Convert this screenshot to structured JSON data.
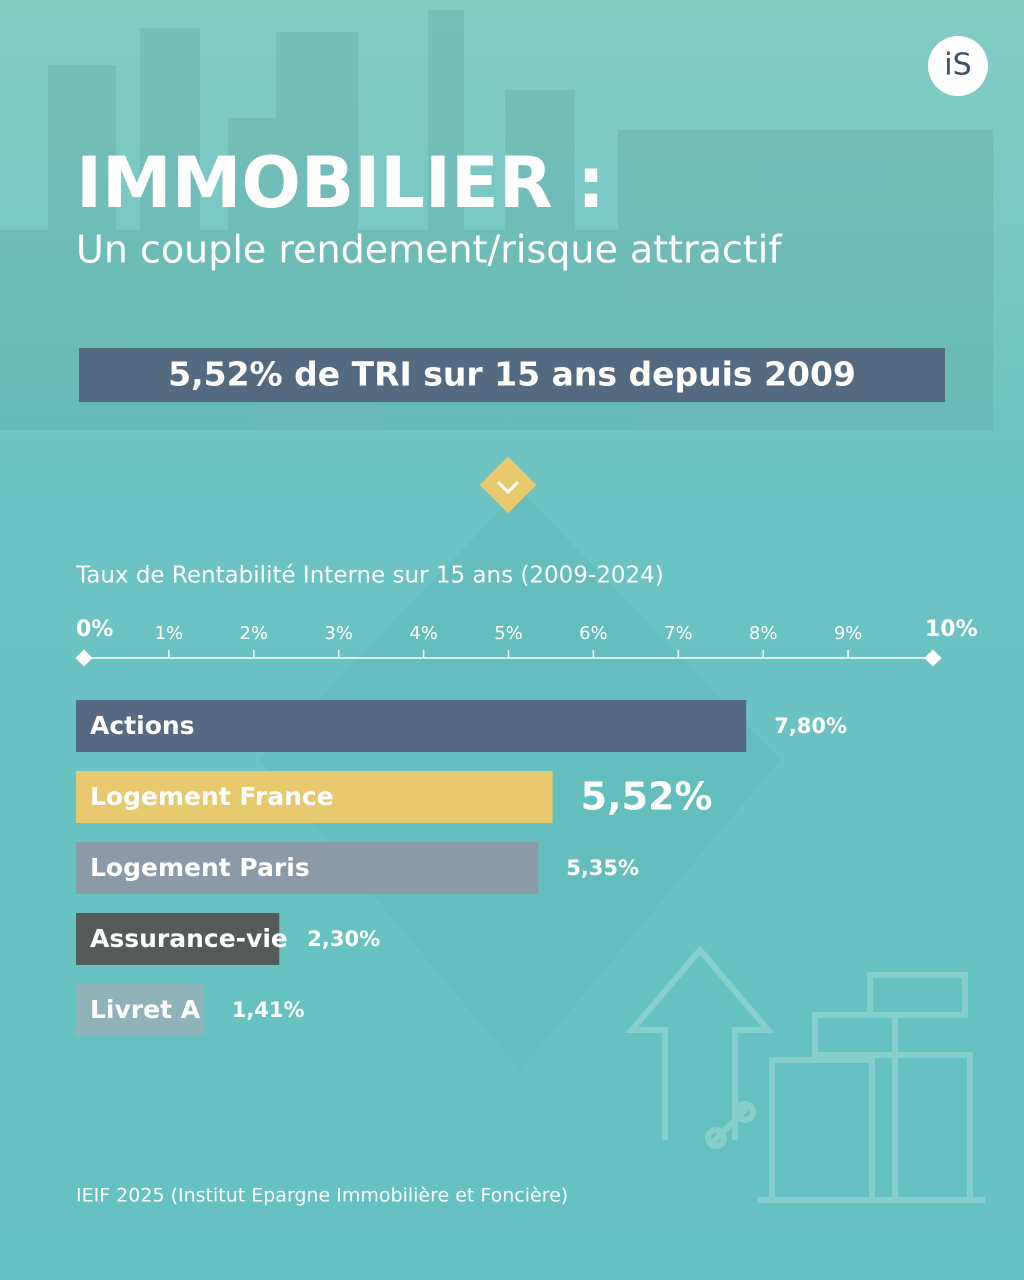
{
  "logo": "iS",
  "headline": "IMMOBILIER :",
  "subheadline": "Un couple rendement/risque attractif",
  "banner": "5,52% de TRI sur 15 ans depuis 2009",
  "source": "IEIF 2025 (Institut Epargne Immobilière et Foncière)",
  "chart_data": {
    "type": "hbar",
    "title": "Taux de Rentabilité Interne sur 15 ans (2009-2024)",
    "categories": [
      "Actions",
      "Logement France",
      "Logement Paris",
      "Assurance-vie",
      "Livret A"
    ],
    "values": [
      7.8,
      5.52,
      5.35,
      2.3,
      1.41
    ],
    "value_labels": [
      "7,80%",
      "5,52%",
      "5,35%",
      "2,30%",
      "1,41%"
    ],
    "colors": [
      "#556a82",
      "#e8c96e",
      "#8a9aa8",
      "#555a5a",
      "#8fb2bb"
    ],
    "xlim": [
      0,
      10
    ],
    "xticks": [
      {
        "value": 0,
        "label": "0%"
      },
      {
        "value": 1,
        "label": "1%"
      },
      {
        "value": 2,
        "label": "2%"
      },
      {
        "value": 3,
        "label": "3%"
      },
      {
        "value": 4,
        "label": "4%"
      },
      {
        "value": 5,
        "label": "5%"
      },
      {
        "value": 6,
        "label": "6%"
      },
      {
        "value": 7,
        "label": "7%"
      },
      {
        "value": 8,
        "label": "8%"
      },
      {
        "value": 9,
        "label": "9%"
      },
      {
        "value": 10,
        "label": "10%"
      }
    ]
  }
}
